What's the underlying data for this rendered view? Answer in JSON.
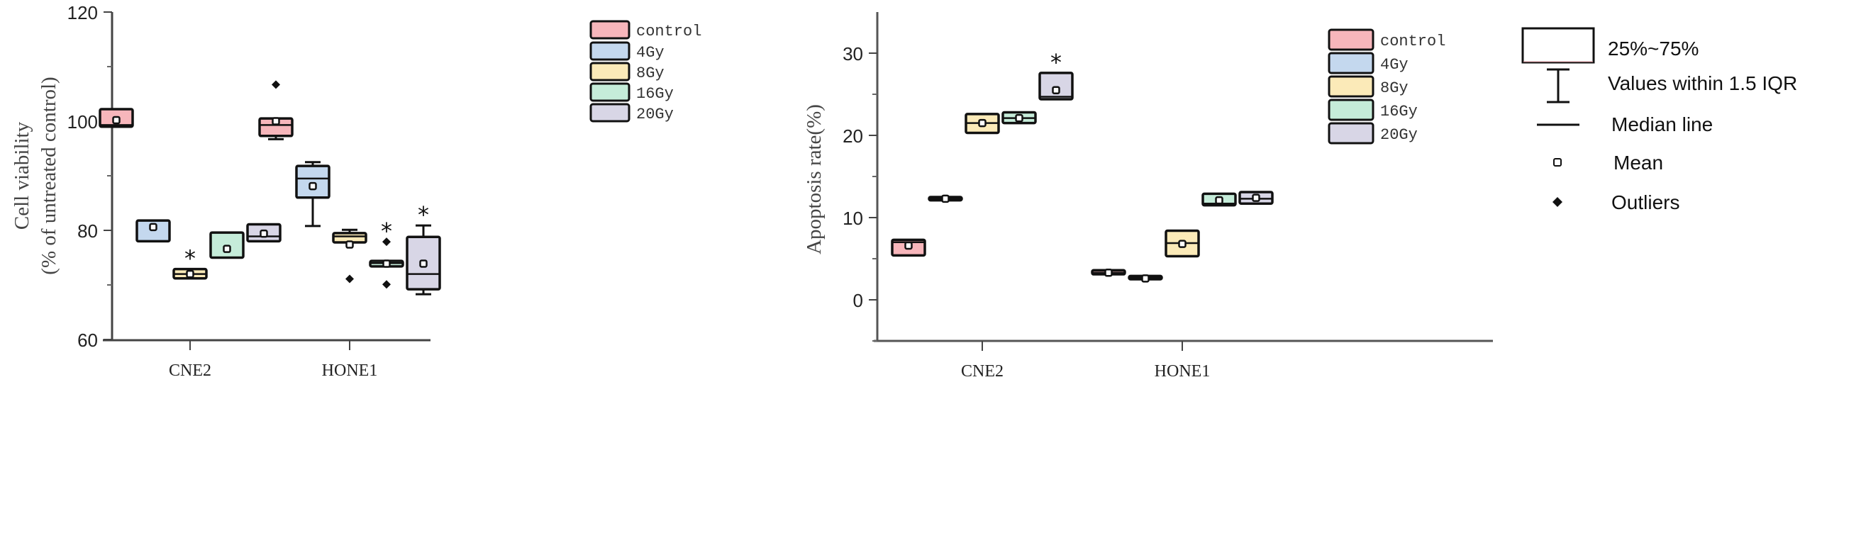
{
  "legend_groups": [
    {
      "name": "control",
      "color": "#f7b6bb"
    },
    {
      "name": "4Gy",
      "color": "#c4d8ee"
    },
    {
      "name": "8Gy",
      "color": "#fbeab8"
    },
    {
      "name": "16Gy",
      "color": "#c5ecd9"
    },
    {
      "name": "20Gy",
      "color": "#d8d6e6"
    }
  ],
  "key_legend": {
    "box": "25%~75%",
    "whisker": "Values within 1.5 IQR",
    "median": "Median line",
    "mean": "Mean",
    "outliers": "Outliers"
  },
  "chart_data": [
    {
      "type": "box",
      "title": "",
      "ylabel_line1": "Cell viability",
      "ylabel_line2": "(% of untreated control)",
      "xlabel": "",
      "ylim": [
        60,
        120
      ],
      "yticks": [
        60,
        80,
        100,
        120
      ],
      "yticks_labels": [
        "60",
        "80",
        "100",
        "120"
      ],
      "categories": [
        "CNE2",
        "HONE1"
      ],
      "series": [
        {
          "name": "control",
          "data": [
            {
              "q1": 99.0,
              "median": 99.3,
              "q3": 102.2,
              "mean": 100.2,
              "wlo": null,
              "whi": null,
              "outliers": [],
              "sig": false
            },
            {
              "q1": 97.3,
              "median": 99.3,
              "q3": 100.5,
              "mean": 100.0,
              "wlo": 96.7,
              "whi": null,
              "outliers": [
                106.7
              ],
              "sig": false
            }
          ]
        },
        {
          "name": "4Gy",
          "data": [
            {
              "q1": 78.0,
              "median": null,
              "q3": 81.8,
              "mean": 80.6,
              "wlo": null,
              "whi": null,
              "outliers": [],
              "sig": false
            },
            {
              "q1": 86.0,
              "median": 89.5,
              "q3": 91.8,
              "mean": 88.1,
              "wlo": 80.8,
              "whi": 92.5,
              "outliers": [],
              "sig": false
            }
          ]
        },
        {
          "name": "8Gy",
          "data": [
            {
              "q1": 71.2,
              "median": 72.0,
              "q3": 72.9,
              "mean": 72.0,
              "wlo": null,
              "whi": null,
              "outliers": [],
              "sig": true
            },
            {
              "q1": 77.8,
              "median": 78.9,
              "q3": 79.5,
              "mean": 77.4,
              "wlo": null,
              "whi": 80.1,
              "outliers": [
                71.1
              ],
              "sig": false
            }
          ]
        },
        {
          "name": "16Gy",
          "data": [
            {
              "q1": 75.0,
              "median": null,
              "q3": 79.6,
              "mean": 76.6,
              "wlo": null,
              "whi": null,
              "outliers": [],
              "sig": false
            },
            {
              "q1": 73.4,
              "median": 74.0,
              "q3": 74.4,
              "mean": 73.9,
              "wlo": null,
              "whi": null,
              "outliers": [
                77.9,
                70.1
              ],
              "sig": true
            }
          ]
        },
        {
          "name": "20Gy",
          "data": [
            {
              "q1": 78.0,
              "median": 78.9,
              "q3": 81.1,
              "mean": 79.4,
              "wlo": null,
              "whi": null,
              "outliers": [],
              "sig": false
            },
            {
              "q1": 69.2,
              "median": 72.0,
              "q3": 78.8,
              "mean": 73.9,
              "wlo": 68.3,
              "whi": 80.9,
              "outliers": [],
              "sig": true
            }
          ]
        }
      ],
      "sig_label": "*"
    },
    {
      "type": "box",
      "title": "",
      "ylabel": "Apoptosis rate(%)",
      "xlabel": "",
      "ylim": [
        -5,
        35
      ],
      "yticks": [
        0,
        10,
        20,
        30
      ],
      "yticks_labels": [
        "0",
        "10",
        "20",
        "30"
      ],
      "categories": [
        "CNE2",
        "HONE1"
      ],
      "series": [
        {
          "name": "control",
          "data": [
            {
              "q1": 5.4,
              "median": 7.0,
              "q3": 7.3,
              "mean": 6.6,
              "wlo": null,
              "whi": null,
              "outliers": [],
              "sig": false
            },
            {
              "q1": 3.1,
              "median": 3.3,
              "q3": 3.6,
              "mean": 3.3,
              "wlo": null,
              "whi": null,
              "outliers": [],
              "sig": false
            }
          ]
        },
        {
          "name": "4Gy",
          "data": [
            {
              "q1": 12.1,
              "median": 12.3,
              "q3": 12.5,
              "mean": 12.3,
              "wlo": null,
              "whi": null,
              "outliers": [],
              "sig": false
            },
            {
              "q1": 2.5,
              "median": 2.7,
              "q3": 2.9,
              "mean": 2.6,
              "wlo": null,
              "whi": null,
              "outliers": [],
              "sig": false
            }
          ]
        },
        {
          "name": "8Gy",
          "data": [
            {
              "q1": 20.3,
              "median": 21.5,
              "q3": 22.6,
              "mean": 21.5,
              "wlo": null,
              "whi": null,
              "outliers": [],
              "sig": false
            },
            {
              "q1": 5.3,
              "median": 6.9,
              "q3": 8.4,
              "mean": 6.8,
              "wlo": null,
              "whi": null,
              "outliers": [],
              "sig": false
            }
          ]
        },
        {
          "name": "16Gy",
          "data": [
            {
              "q1": 21.5,
              "median": 22.1,
              "q3": 22.8,
              "mean": 22.1,
              "wlo": null,
              "whi": null,
              "outliers": [],
              "sig": false
            },
            {
              "q1": 11.5,
              "median": 11.7,
              "q3": 12.9,
              "mean": 12.1,
              "wlo": null,
              "whi": null,
              "outliers": [],
              "sig": false
            }
          ]
        },
        {
          "name": "20Gy",
          "data": [
            {
              "q1": 24.4,
              "median": 24.7,
              "q3": 27.6,
              "mean": 25.5,
              "wlo": null,
              "whi": null,
              "outliers": [],
              "sig": true
            },
            {
              "q1": 11.7,
              "median": 12.3,
              "q3": 13.1,
              "mean": 12.4,
              "wlo": null,
              "whi": null,
              "outliers": [],
              "sig": false
            }
          ]
        }
      ],
      "sig_label": "*"
    }
  ]
}
